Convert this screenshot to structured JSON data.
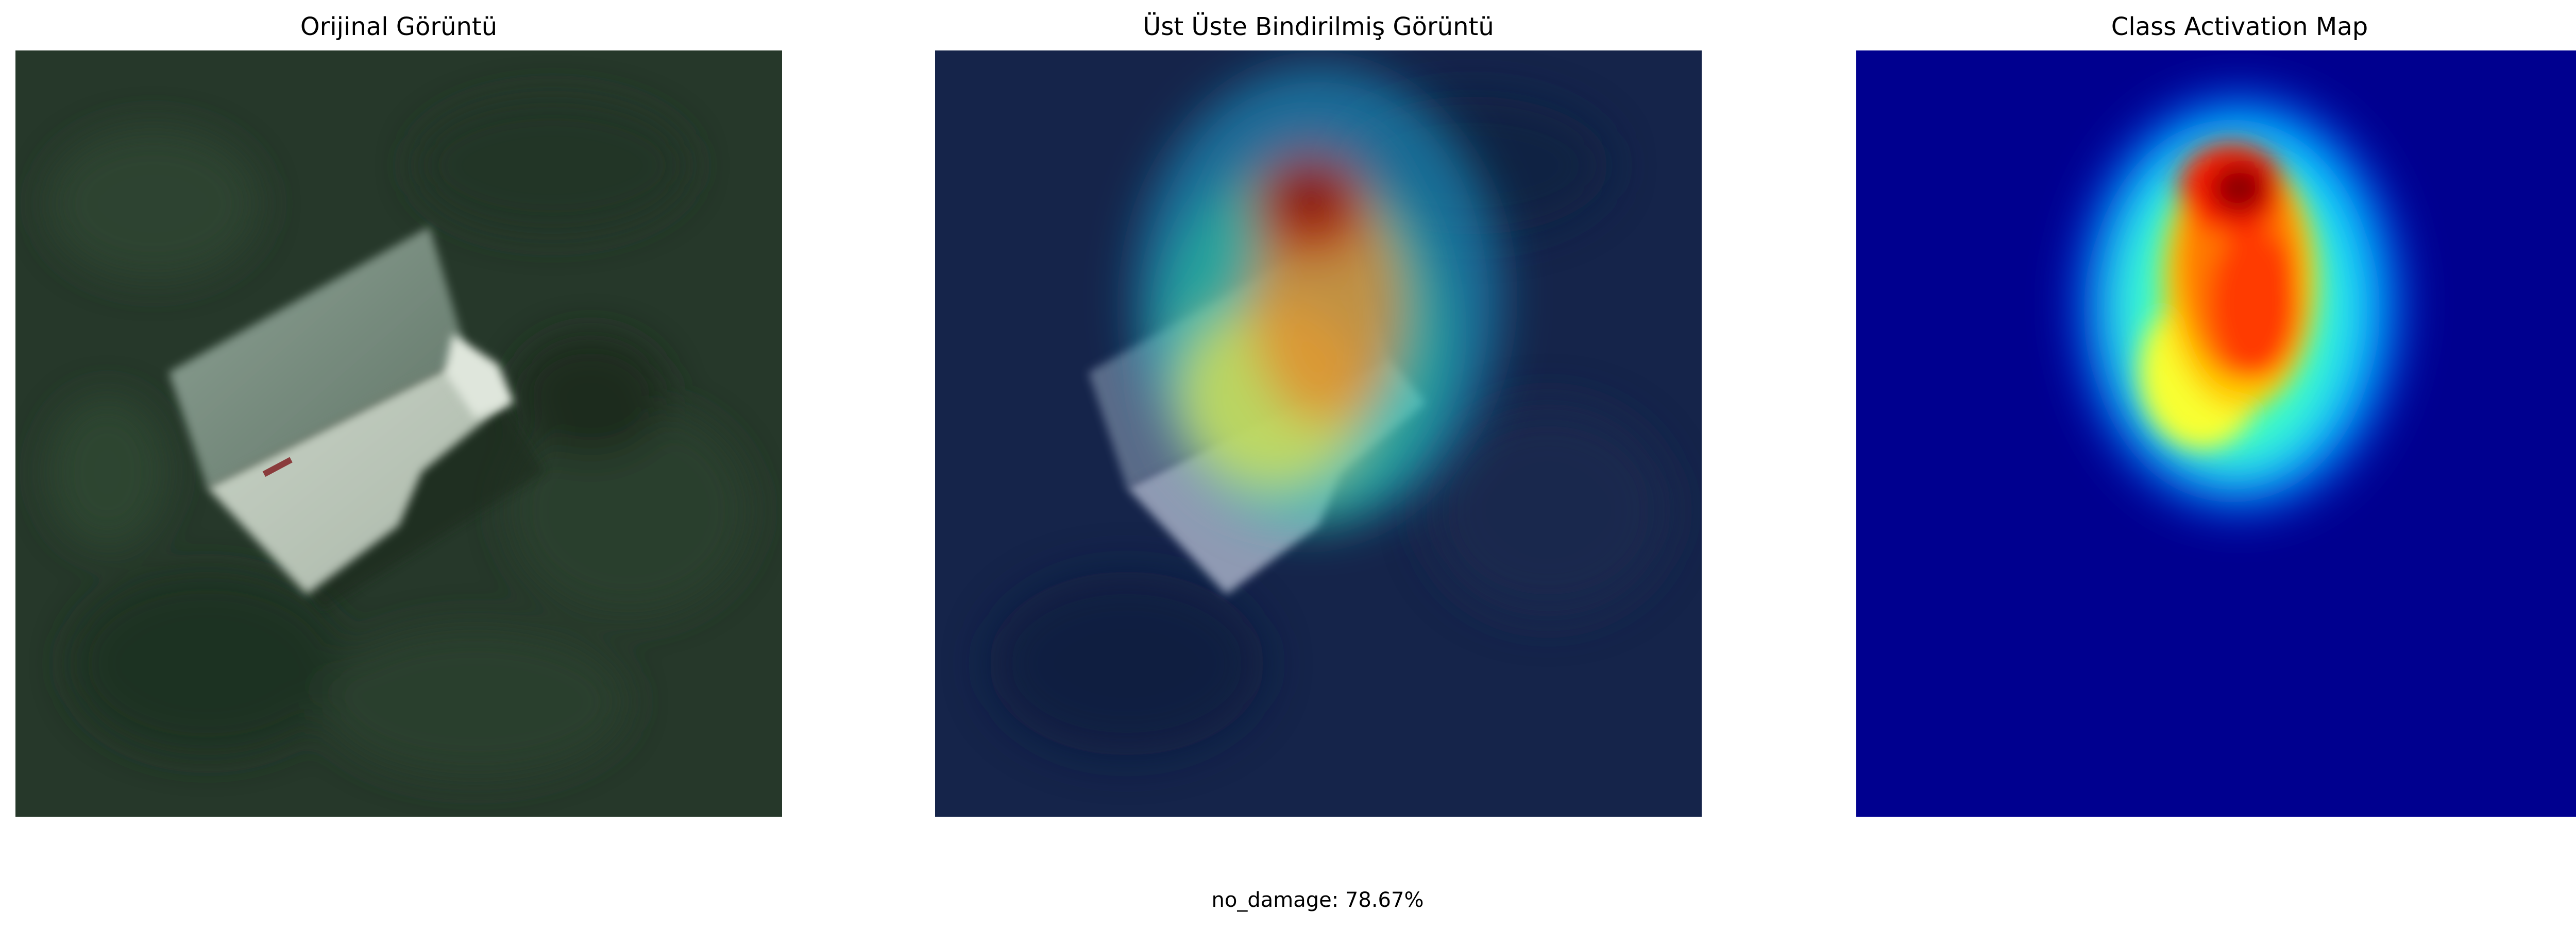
{
  "panels": [
    {
      "title": "Orijinal Görüntü"
    },
    {
      "title": "Üst Üste Bindirilmiş Görüntü"
    },
    {
      "title": "Class Activation Map"
    }
  ],
  "prediction": {
    "label": "no_damage: 78.67%"
  }
}
